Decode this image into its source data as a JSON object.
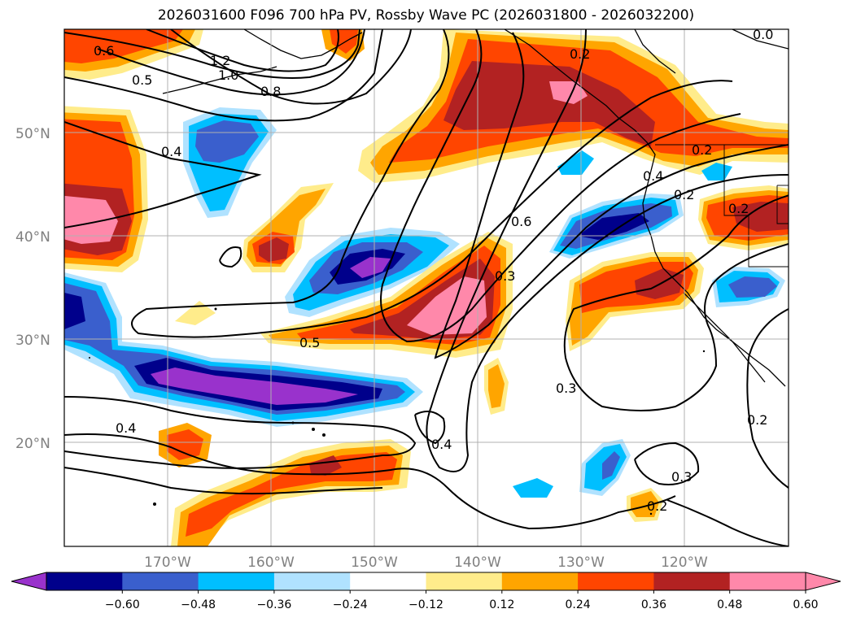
{
  "title": "2026031600 F096 700 hPa PV, Rossby Wave PC (2026031800 - 2026032200)",
  "map": {
    "lat_labels": [
      "50°N",
      "40°N",
      "30°N",
      "20°N"
    ],
    "lon_labels": [
      "170°W",
      "160°W",
      "150°W",
      "140°W",
      "130°W",
      "120°W"
    ],
    "contour_labels": [
      "0.6",
      "0.5",
      "1.2",
      "1.0",
      "0.8",
      "0.4",
      "0.2",
      "0.0",
      "0.2",
      "0.4",
      "0.2",
      "0.2",
      "0.6",
      "0.3",
      "0.5",
      "0.3",
      "0.2",
      "0.4",
      "0.4",
      "0.3",
      "0.2"
    ]
  },
  "colorbar": {
    "ticks": [
      "−0.60",
      "−0.48",
      "−0.36",
      "−0.24",
      "−0.12",
      "0.12",
      "0.24",
      "0.36",
      "0.48",
      "0.60"
    ],
    "colors": [
      "#9932cc",
      "#00008b",
      "#3a5fcd",
      "#00bfff",
      "#b0e2ff",
      "#ffffff",
      "#ffec8b",
      "#ffa500",
      "#ff4500",
      "#b22222",
      "#ff88aa",
      "#ff88aa"
    ]
  },
  "fill_colors": {
    "purple": "#9932cc",
    "navy": "#00008b",
    "blue": "#3a5fcd",
    "cyan": "#00bfff",
    "lightblue": "#b0e2ff",
    "yellow": "#ffec8b",
    "orange": "#ffa500",
    "redorange": "#ff4500",
    "darkred": "#b22222",
    "pink": "#ff88aa"
  }
}
